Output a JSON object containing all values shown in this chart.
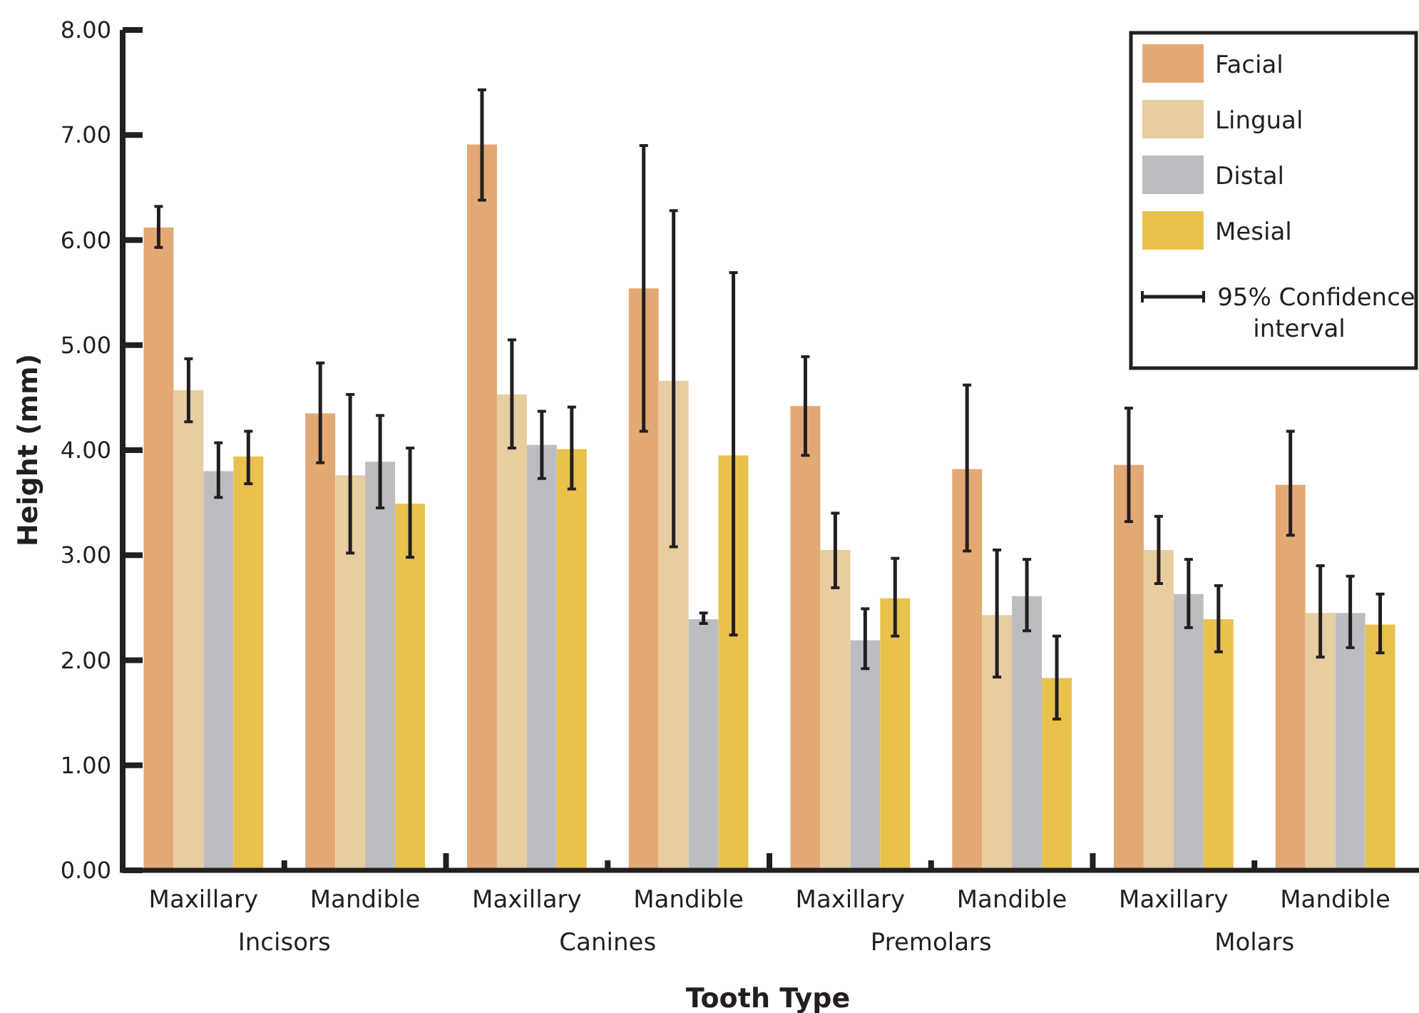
{
  "chart_data": {
    "type": "bar",
    "xlabel": "Tooth Type",
    "ylabel": "Height (mm)",
    "categories": [
      "Maxillary",
      "Mandible",
      "Maxillary",
      "Mandible",
      "Maxillary",
      "Mandible",
      "Maxillary",
      "Mandible"
    ],
    "series": [
      {
        "name": "Facial",
        "color": "#e3a975",
        "values": [
          6.12,
          4.35,
          6.91,
          5.54,
          4.42,
          3.82,
          3.86,
          3.67
        ],
        "errors": [
          [
            5.93,
            6.32
          ],
          [
            3.88,
            4.83
          ],
          [
            6.38,
            7.43
          ],
          [
            4.18,
            6.9
          ],
          [
            3.95,
            4.89
          ],
          [
            3.04,
            4.62
          ],
          [
            3.32,
            4.4
          ],
          [
            3.19,
            4.18
          ]
        ]
      },
      {
        "name": "Lingual",
        "color": "#e8cda0",
        "values": [
          4.57,
          3.76,
          4.53,
          4.66,
          3.05,
          2.43,
          3.05,
          2.45
        ],
        "errors": [
          [
            4.27,
            4.87
          ],
          [
            3.02,
            4.53
          ],
          [
            4.02,
            5.05
          ],
          [
            3.08,
            6.28
          ],
          [
            2.69,
            3.4
          ],
          [
            1.84,
            3.05
          ],
          [
            2.73,
            3.37
          ],
          [
            2.03,
            2.9
          ]
        ]
      },
      {
        "name": "Distal",
        "color": "#bcbdc0",
        "values": [
          3.8,
          3.89,
          4.05,
          2.39,
          2.19,
          2.61,
          2.63,
          2.45
        ],
        "errors": [
          [
            3.55,
            4.07
          ],
          [
            3.45,
            4.33
          ],
          [
            3.73,
            4.37
          ],
          [
            2.35,
            2.45
          ],
          [
            1.92,
            2.49
          ],
          [
            2.28,
            2.96
          ],
          [
            2.31,
            2.96
          ],
          [
            2.12,
            2.8
          ]
        ]
      },
      {
        "name": "Mesial",
        "color": "#e8c24d",
        "values": [
          3.94,
          3.49,
          4.01,
          3.95,
          2.59,
          1.83,
          2.39,
          2.34
        ],
        "errors": [
          [
            3.68,
            4.18
          ],
          [
            2.98,
            4.02
          ],
          [
            3.63,
            4.41
          ],
          [
            2.24,
            5.69
          ],
          [
            2.23,
            2.97
          ],
          [
            1.44,
            2.23
          ],
          [
            2.08,
            2.71
          ],
          [
            2.07,
            2.63
          ]
        ]
      }
    ],
    "ylim": [
      0,
      8
    ],
    "yticks": [
      {
        "value": 0,
        "label": "0.00"
      },
      {
        "value": 1,
        "label": "1.00"
      },
      {
        "value": 2,
        "label": "2.00"
      },
      {
        "value": 3,
        "label": "3.00"
      },
      {
        "value": 4,
        "label": "4.00"
      },
      {
        "value": 5,
        "label": "5.00"
      },
      {
        "value": 6,
        "label": "6.00"
      },
      {
        "value": 7,
        "label": "7.00"
      },
      {
        "value": 8,
        "label": "8.00"
      }
    ],
    "annotations": [
      "Incisors",
      "Canines",
      "Premolars",
      "Molars",
      "95% Confidence interval"
    ],
    "legend": "top right",
    "grid": false
  }
}
